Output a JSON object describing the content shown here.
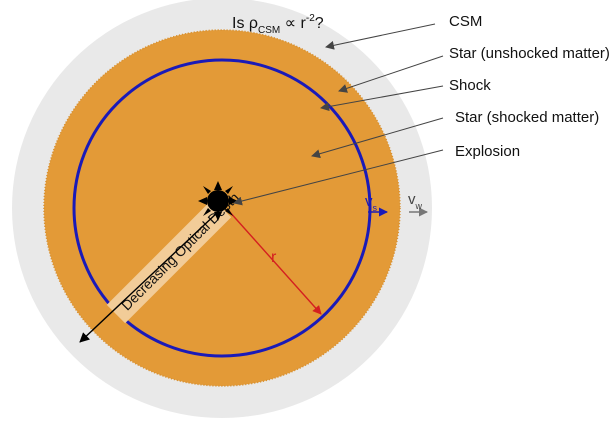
{
  "labels": {
    "csm": "CSM",
    "star_unshocked": "Star (unshocked matter)",
    "shock": "Shock",
    "star_shocked": "Star (shocked matter)",
    "explosion": "Explosion"
  },
  "question": {
    "prefix": "Is ρ",
    "rho_subscript": "CSM",
    "middle": " ∝ r",
    "exponent": "-2",
    "suffix": "?"
  },
  "velocities": {
    "shock_symbol": "v",
    "shock_subscript": "s",
    "wind_symbol": "v",
    "wind_subscript": "w"
  },
  "radius_label": "r",
  "depth_label": "Decreasing Optical Depth",
  "colors": {
    "csm": "#e9e9e9",
    "star": "#e39a37",
    "shock": "#1a1ab8",
    "radius": "#d42020",
    "explosion_core": "#000000",
    "wind_arrow": "#777777",
    "depth_band": "#f2cc98",
    "leader": "#444444"
  }
}
